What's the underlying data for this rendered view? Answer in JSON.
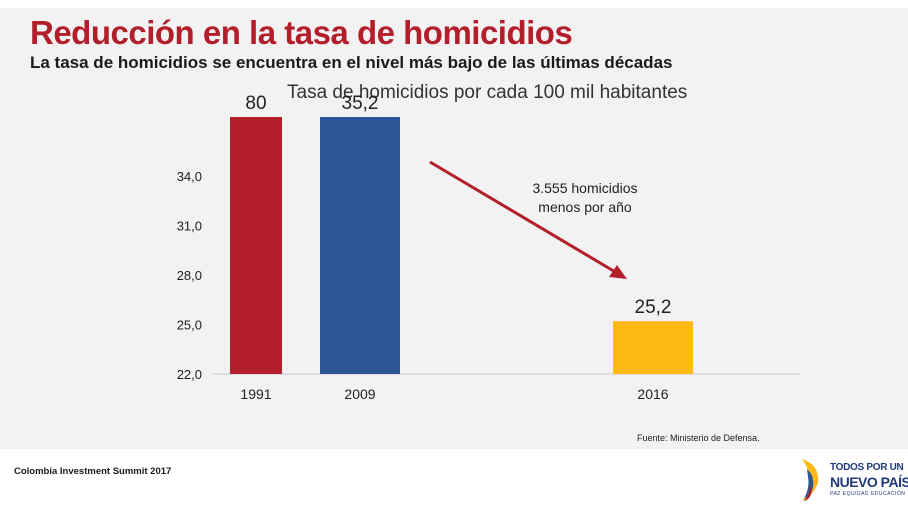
{
  "slide": {
    "title": "Reducción en la tasa de homicidios",
    "subtitle": "La tasa de homicidios se encuentra en el nivel más bajo de las últimas décadas",
    "source": "Fuente: Ministerio de Defensa.",
    "event": "Colombia Investment Summit 2017"
  },
  "logo": {
    "line1": "TODOS POR UN",
    "line2": "NUEVO PAÍS",
    "line3": "PAZ  EQUIDAD  EDUCACIÓN"
  },
  "chart_data": {
    "type": "bar",
    "title": "Tasa de homicidios por cada 100 mil habitantes",
    "categories": [
      "1991",
      "2009",
      "2016"
    ],
    "values": [
      80,
      35.2,
      25.2
    ],
    "value_labels": [
      "80",
      "35,2",
      "25,2"
    ],
    "colors": [
      "#b21e2a",
      "#2e5596",
      "#fdb813"
    ],
    "yticks": [
      22.0,
      25.0,
      28.0,
      31.0,
      34.0
    ],
    "ytick_labels": [
      "22,0",
      "25,0",
      "28,0",
      "31,0",
      "34,0"
    ],
    "ylim": [
      22,
      34
    ],
    "axis_break": true,
    "grid": false,
    "annotation": {
      "lines": [
        "3.555 homicidios",
        "menos por año"
      ],
      "arrow_color": "#b21e2a"
    }
  }
}
